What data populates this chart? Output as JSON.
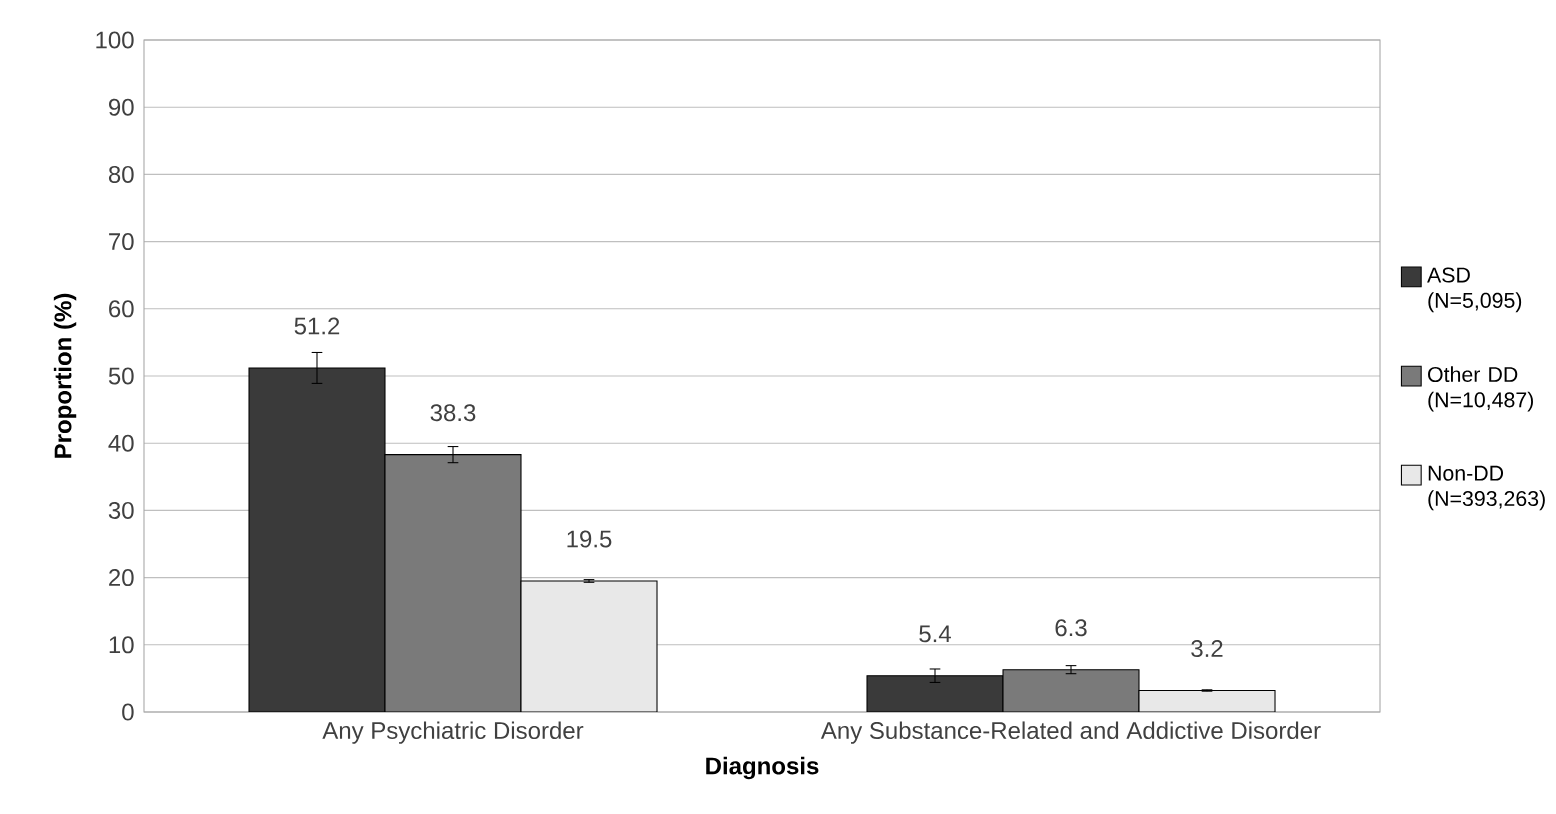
{
  "chart_data": {
    "type": "bar",
    "xlabel": "Diagnosis",
    "ylabel": "Proportion (%)",
    "categories": [
      "Any Psychiatric Disorder",
      "Any Substance-Related and Addictive Disorder"
    ],
    "series": [
      {
        "name": "ASD (N=5,095)",
        "color": "#3a3a3a",
        "values": [
          51.2,
          5.4
        ],
        "errors": [
          2.3,
          1.0
        ]
      },
      {
        "name": "Other DD (N=10,487)",
        "color": "#7a7a7a",
        "values": [
          38.3,
          6.3
        ],
        "errors": [
          1.2,
          0.6
        ]
      },
      {
        "name": "Non-DD (N=393,263)",
        "color": "#e8e8e8",
        "values": [
          19.5,
          3.2
        ],
        "errors": [
          0.2,
          0.1
        ]
      }
    ],
    "ylim": [
      0,
      100
    ],
    "yticks": [
      0,
      10,
      20,
      30,
      40,
      50,
      60,
      70,
      80,
      90,
      100
    ],
    "grid": "y",
    "legend": "right",
    "data_labels": true
  }
}
